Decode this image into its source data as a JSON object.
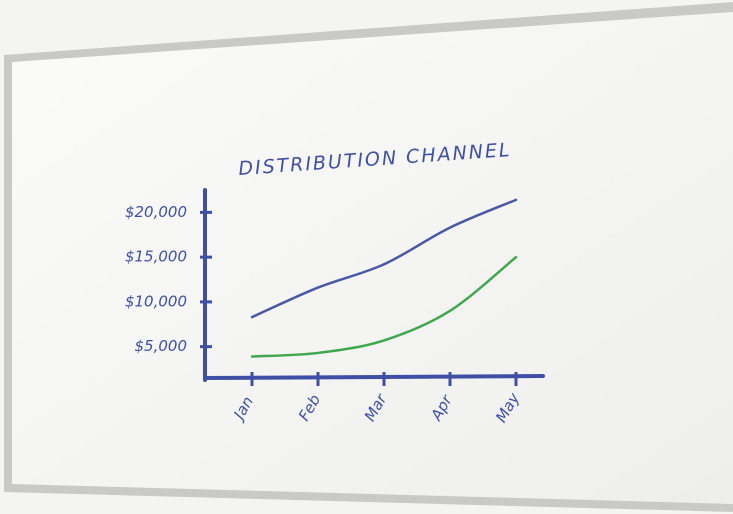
{
  "chart_data": {
    "type": "line",
    "title": "DISTRIBUTION CHANNEL",
    "categories": [
      "Jan",
      "Feb",
      "Mar",
      "Apr",
      "May"
    ],
    "series": [
      {
        "color": "#4b58a6",
        "values": [
          8300,
          11600,
          14200,
          18300,
          21400
        ]
      },
      {
        "color": "#3fa84e",
        "values": [
          3900,
          4300,
          5700,
          9000,
          15000
        ]
      }
    ],
    "ylim": [
      1500,
      22500
    ],
    "yticks": [
      {
        "value": 5000,
        "label": "$5,000"
      },
      {
        "value": 10000,
        "label": "$10,000"
      },
      {
        "value": 15000,
        "label": "$15,000"
      },
      {
        "value": 20000,
        "label": "$20,000"
      }
    ],
    "grid": false,
    "axis_color": "#3f4fa6"
  }
}
